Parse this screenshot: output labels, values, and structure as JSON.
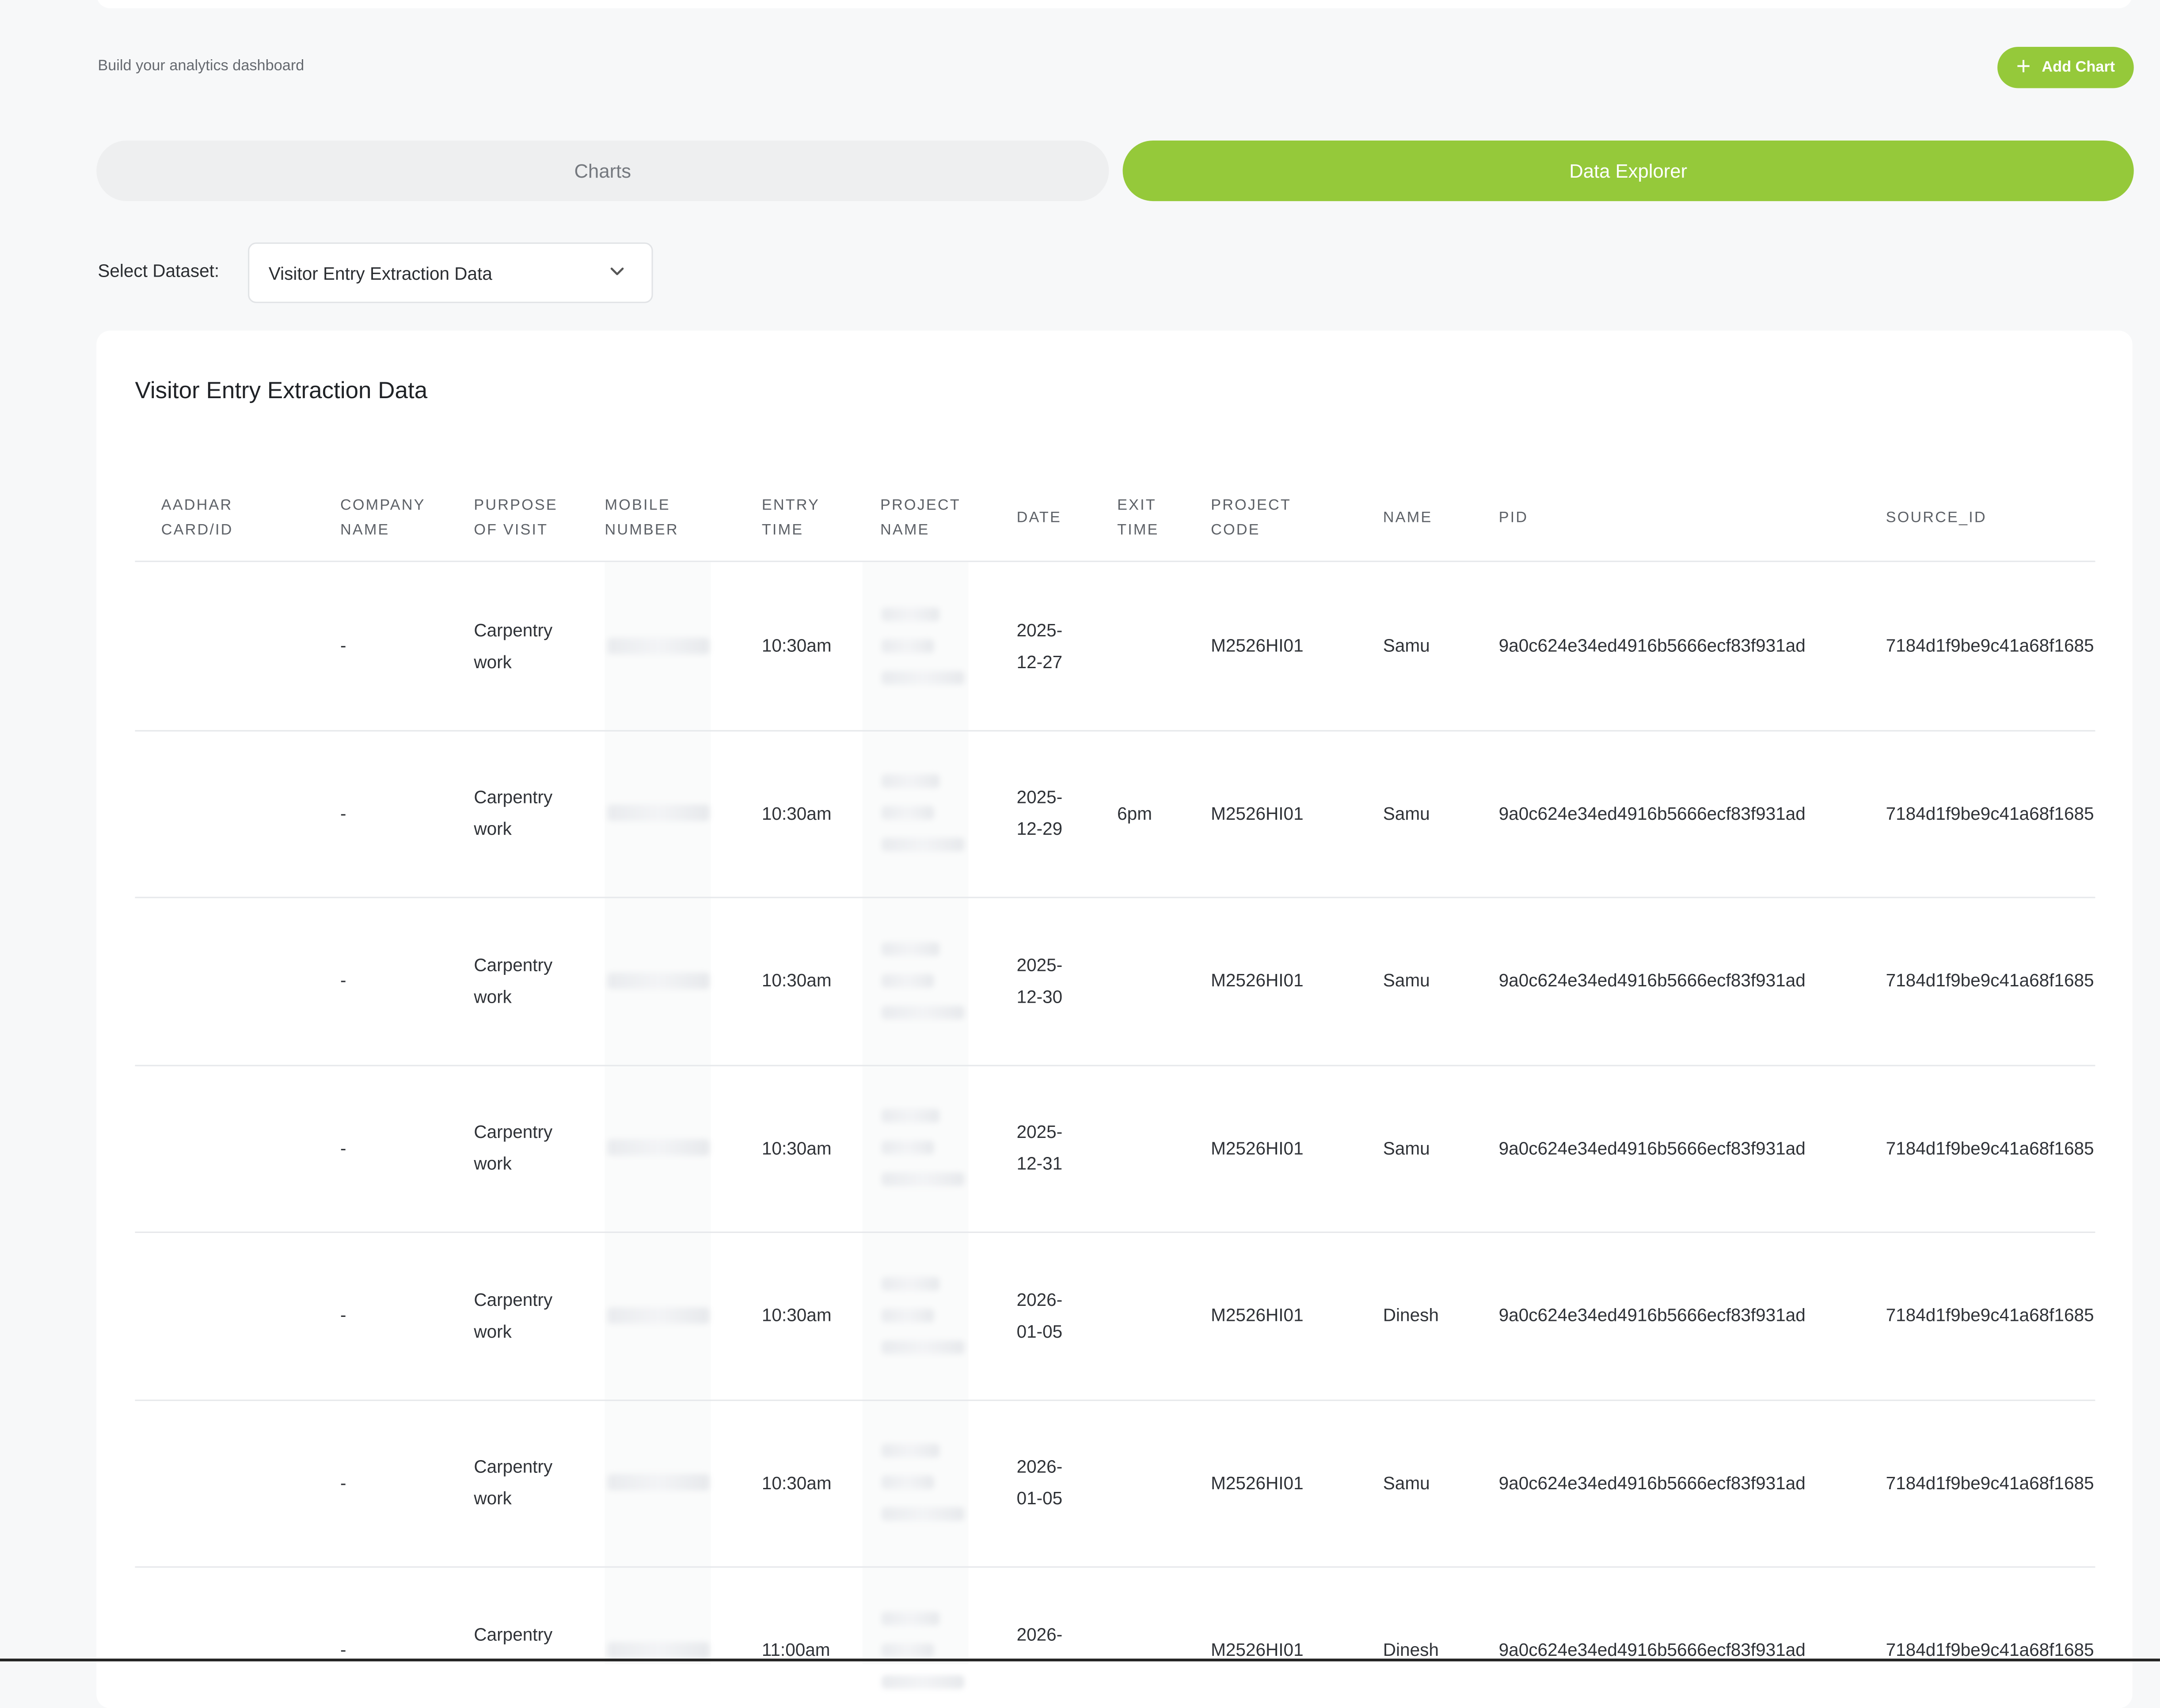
{
  "header": {
    "subtitle": "Build your analytics dashboard",
    "add_chart_label": "Add Chart"
  },
  "tabs": [
    {
      "label": "Charts",
      "active": false
    },
    {
      "label": "Data Explorer",
      "active": true
    }
  ],
  "dataset": {
    "label": "Select Dataset:",
    "selected": "Visitor Entry Extraction Data"
  },
  "table": {
    "title": "Visitor Entry Extraction Data",
    "columns": [
      {
        "l1": "AADHAR",
        "l2": "CARD/ID"
      },
      {
        "l1": "COMPANY",
        "l2": "NAME"
      },
      {
        "l1": "PURPOSE",
        "l2": "OF VISIT"
      },
      {
        "l1": "MOBILE",
        "l2": "NUMBER"
      },
      {
        "l1": "ENTRY",
        "l2": "TIME"
      },
      {
        "l1": "PROJECT",
        "l2": "NAME"
      },
      {
        "l1": "DATE",
        "l2": ""
      },
      {
        "l1": "EXIT",
        "l2": "TIME"
      },
      {
        "l1": "PROJECT",
        "l2": "CODE"
      },
      {
        "l1": "NAME",
        "l2": ""
      },
      {
        "l1": "PID",
        "l2": ""
      },
      {
        "l1": "SOURCE_ID",
        "l2": ""
      }
    ],
    "rows": [
      {
        "company": "-",
        "purpose1": "Carpentry",
        "purpose2": "work",
        "entry": "10:30am",
        "date1": "2025-",
        "date2": "12-27",
        "exit": "",
        "code": "M2526HI01",
        "name": "Samu",
        "pid": "9a0c624e34ed4916b5666ecf83f931ad",
        "source": "7184d1f9be9c41a68f1685"
      },
      {
        "company": "-",
        "purpose1": "Carpentry",
        "purpose2": "work",
        "entry": "10:30am",
        "date1": "2025-",
        "date2": "12-29",
        "exit": "6pm",
        "code": "M2526HI01",
        "name": "Samu",
        "pid": "9a0c624e34ed4916b5666ecf83f931ad",
        "source": "7184d1f9be9c41a68f1685"
      },
      {
        "company": "-",
        "purpose1": "Carpentry",
        "purpose2": "work",
        "entry": "10:30am",
        "date1": "2025-",
        "date2": "12-30",
        "exit": "",
        "code": "M2526HI01",
        "name": "Samu",
        "pid": "9a0c624e34ed4916b5666ecf83f931ad",
        "source": "7184d1f9be9c41a68f1685"
      },
      {
        "company": "-",
        "purpose1": "Carpentry",
        "purpose2": "work",
        "entry": "10:30am",
        "date1": "2025-",
        "date2": "12-31",
        "exit": "",
        "code": "M2526HI01",
        "name": "Samu",
        "pid": "9a0c624e34ed4916b5666ecf83f931ad",
        "source": "7184d1f9be9c41a68f1685"
      },
      {
        "company": "-",
        "purpose1": "Carpentry",
        "purpose2": "work",
        "entry": "10:30am",
        "date1": "2026-",
        "date2": "01-05",
        "exit": "",
        "code": "M2526HI01",
        "name": "Dinesh",
        "pid": "9a0c624e34ed4916b5666ecf83f931ad",
        "source": "7184d1f9be9c41a68f1685"
      },
      {
        "company": "-",
        "purpose1": "Carpentry",
        "purpose2": "work",
        "entry": "10:30am",
        "date1": "2026-",
        "date2": "01-05",
        "exit": "",
        "code": "M2526HI01",
        "name": "Samu",
        "pid": "9a0c624e34ed4916b5666ecf83f931ad",
        "source": "7184d1f9be9c41a68f1685"
      },
      {
        "company": "-",
        "purpose1": "Carpentry",
        "purpose2": "",
        "entry": "11:00am",
        "date1": "2026-",
        "date2": "",
        "exit": "",
        "code": "M2526HI01",
        "name": "Dinesh",
        "pid": "9a0c624e34ed4916b5666ecf83f931ad",
        "source": "7184d1f9be9c41a68f1685"
      }
    ]
  },
  "colors": {
    "accent": "#95c93a",
    "background": "#f7f8f9",
    "panel": "#ffffff"
  }
}
